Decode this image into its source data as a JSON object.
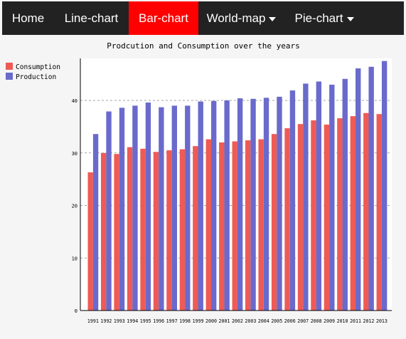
{
  "navbar": {
    "items": [
      {
        "label": "Home",
        "dropdown": false,
        "active": false
      },
      {
        "label": "Line-chart",
        "dropdown": false,
        "active": false
      },
      {
        "label": "Bar-chart",
        "dropdown": false,
        "active": true
      },
      {
        "label": "World-map",
        "dropdown": true,
        "active": false
      },
      {
        "label": "Pie-chart",
        "dropdown": true,
        "active": false
      }
    ],
    "active_color": "#ff0000",
    "background_color": "#222222"
  },
  "chart_data": {
    "type": "bar",
    "title": "Prodcution and Consumption over the years",
    "xlabel": "",
    "ylabel": "",
    "ylim": [
      0,
      48
    ],
    "yticks": [
      0,
      10,
      20,
      30,
      40
    ],
    "grid": true,
    "legend": "top-left",
    "categories": [
      "1991",
      "1992",
      "1993",
      "1994",
      "1995",
      "1996",
      "1997",
      "1998",
      "1999",
      "2000",
      "2001",
      "2002",
      "2003",
      "2004",
      "2005",
      "2006",
      "2007",
      "2008",
      "2009",
      "2010",
      "2011",
      "2012",
      "2013"
    ],
    "series": [
      {
        "name": "Consumption",
        "color": "#ee5b55",
        "values": [
          26.3,
          30.0,
          29.8,
          31.1,
          30.8,
          30.2,
          30.5,
          30.7,
          31.3,
          32.6,
          32.0,
          32.2,
          32.4,
          32.6,
          33.6,
          34.7,
          35.5,
          36.2,
          35.4,
          36.6,
          37.0,
          37.6,
          37.4
        ]
      },
      {
        "name": "Production",
        "color": "#6a6acc",
        "values": [
          33.6,
          37.9,
          38.6,
          39.0,
          39.6,
          38.7,
          39.0,
          39.0,
          39.8,
          39.9,
          40.0,
          40.4,
          40.3,
          40.5,
          40.7,
          41.9,
          43.2,
          43.6,
          43.0,
          44.1,
          46.1,
          46.4,
          47.5
        ]
      }
    ]
  }
}
